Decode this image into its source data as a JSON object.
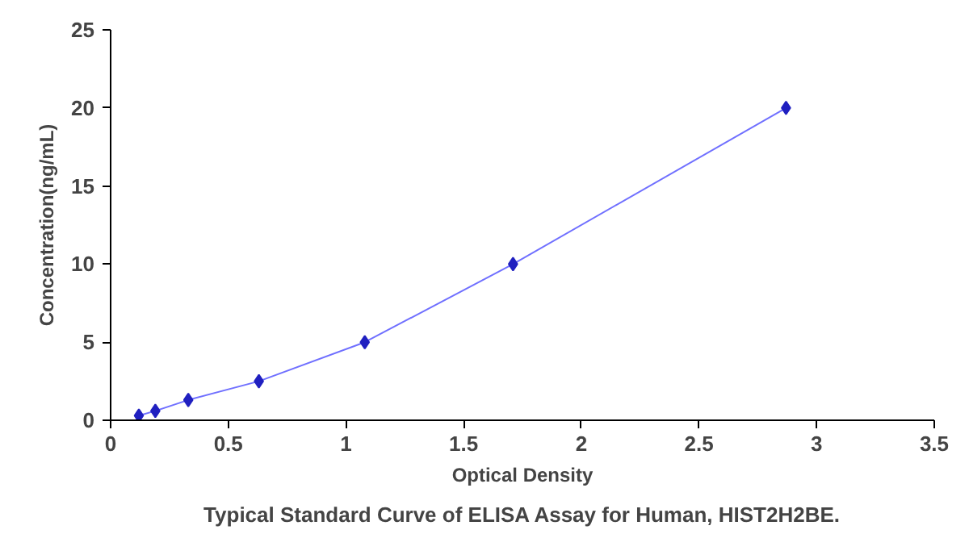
{
  "chart_data": {
    "type": "line",
    "xlabel": "Optical Density",
    "ylabel": "Concentration(ng/mL)",
    "annotations": [
      "Typical Standard Curve of ELISA Assay for Human, HIST2H2BE."
    ],
    "series": [
      {
        "color": "#2020c0",
        "x": [
          0.12,
          0.19,
          0.33,
          0.63,
          1.08,
          1.71,
          2.87
        ],
        "values": [
          0.3,
          0.6,
          1.3,
          2.5,
          5,
          10,
          20
        ]
      }
    ],
    "xlim": [
      0,
      3.5
    ],
    "ylim": [
      0,
      25
    ],
    "xticks": [
      0,
      0.5,
      1,
      1.5,
      2,
      2.5,
      3,
      3.5
    ],
    "yticks": [
      0,
      5,
      10,
      15,
      20,
      25
    ],
    "marker": "diamond",
    "line_style": "solid",
    "grid": false
  }
}
